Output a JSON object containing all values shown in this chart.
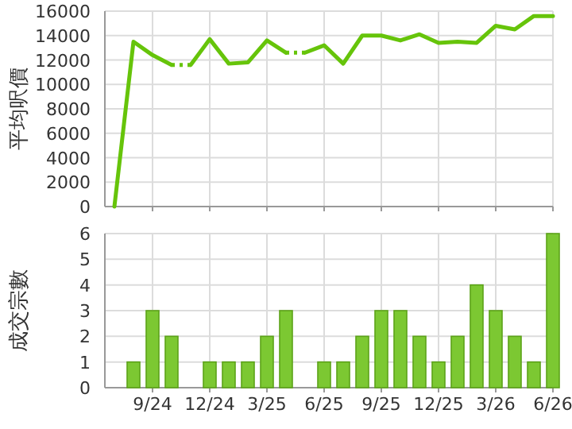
{
  "chart_data": [
    {
      "type": "line",
      "ylabel": "平均呎價",
      "grid": true,
      "tick_labels": "y",
      "marker": "none",
      "series": [
        {
          "color": "#66c40a",
          "line_style": "solid",
          "x": [
            "2024-07",
            "2024-08",
            "2024-09",
            "2024-10"
          ],
          "values": [
            0,
            13500,
            12400,
            11600
          ]
        },
        {
          "color": "#66c40a",
          "line_style": "solid",
          "x": [
            "2024-11",
            "2024-12",
            "2025-01",
            "2025-02",
            "2025-03",
            "2025-04"
          ],
          "values": [
            11600,
            13700,
            11700,
            11800,
            13600,
            12600
          ]
        },
        {
          "color": "#66c40a",
          "line_style": "solid",
          "x": [
            "2025-05",
            "2025-06",
            "2025-07",
            "2025-08",
            "2025-09",
            "2025-10",
            "2025-11",
            "2025-12",
            "2026-01",
            "2026-02",
            "2026-03",
            "2026-04",
            "2026-05",
            "2026-06"
          ],
          "values": [
            12600,
            13200,
            11700,
            14000,
            14000,
            13600,
            14100,
            13400,
            13500,
            13400,
            14800,
            14500,
            15600,
            15600
          ]
        },
        {
          "color": "#66c40a",
          "line_style": "dotted",
          "x": [
            "2024-10",
            "2024-11"
          ],
          "values": [
            11600,
            11600
          ]
        },
        {
          "color": "#66c40a",
          "line_style": "dotted",
          "x": [
            "2025-04",
            "2025-05"
          ],
          "values": [
            12600,
            12600
          ]
        }
      ],
      "xlim": [
        "2024-06-16",
        "2026-06-01"
      ],
      "xticks": [
        {
          "value": "2024-09",
          "label": null
        },
        {
          "value": "2024-12",
          "label": null
        },
        {
          "value": "2025-03",
          "label": null
        },
        {
          "value": "2025-06",
          "label": null
        },
        {
          "value": "2025-09",
          "label": null
        },
        {
          "value": "2025-12",
          "label": null
        },
        {
          "value": "2026-03",
          "label": null
        },
        {
          "value": "2026-06",
          "label": null
        }
      ],
      "ylim": [
        0,
        16000
      ],
      "yticks": [
        0,
        2000,
        4000,
        6000,
        8000,
        10000,
        12000,
        14000,
        16000
      ]
    },
    {
      "type": "bar",
      "ylabel": "成交宗數",
      "grid": true,
      "x": [
        "2024-07",
        "2024-08",
        "2024-09",
        "2024-10",
        "2024-11",
        "2024-12",
        "2025-01",
        "2025-02",
        "2025-03",
        "2025-04",
        "2025-05",
        "2025-06",
        "2025-07",
        "2025-08",
        "2025-09",
        "2025-10",
        "2025-11",
        "2025-12",
        "2026-01",
        "2026-02",
        "2026-03",
        "2026-04",
        "2026-05",
        "2026-06"
      ],
      "values": [
        0,
        1,
        3,
        2,
        0,
        1,
        1,
        1,
        2,
        3,
        0,
        1,
        1,
        2,
        3,
        3,
        2,
        1,
        2,
        4,
        3,
        2,
        1,
        6
      ],
      "color": "#7cc832",
      "xlim": [
        "2024-06-16",
        "2026-06-01"
      ],
      "xticks": [
        {
          "value": "2024-09",
          "label": "9/24"
        },
        {
          "value": "2024-12",
          "label": "12/24"
        },
        {
          "value": "2025-03",
          "label": "3/25"
        },
        {
          "value": "2025-06",
          "label": "6/25"
        },
        {
          "value": "2025-09",
          "label": "9/25"
        },
        {
          "value": "2025-12",
          "label": "12/25"
        },
        {
          "value": "2026-03",
          "label": "3/26"
        },
        {
          "value": "2026-06",
          "label": "6/26"
        }
      ],
      "ylim": [
        0,
        6
      ],
      "yticks": [
        0,
        1,
        2,
        3,
        4,
        5,
        6
      ]
    }
  ]
}
